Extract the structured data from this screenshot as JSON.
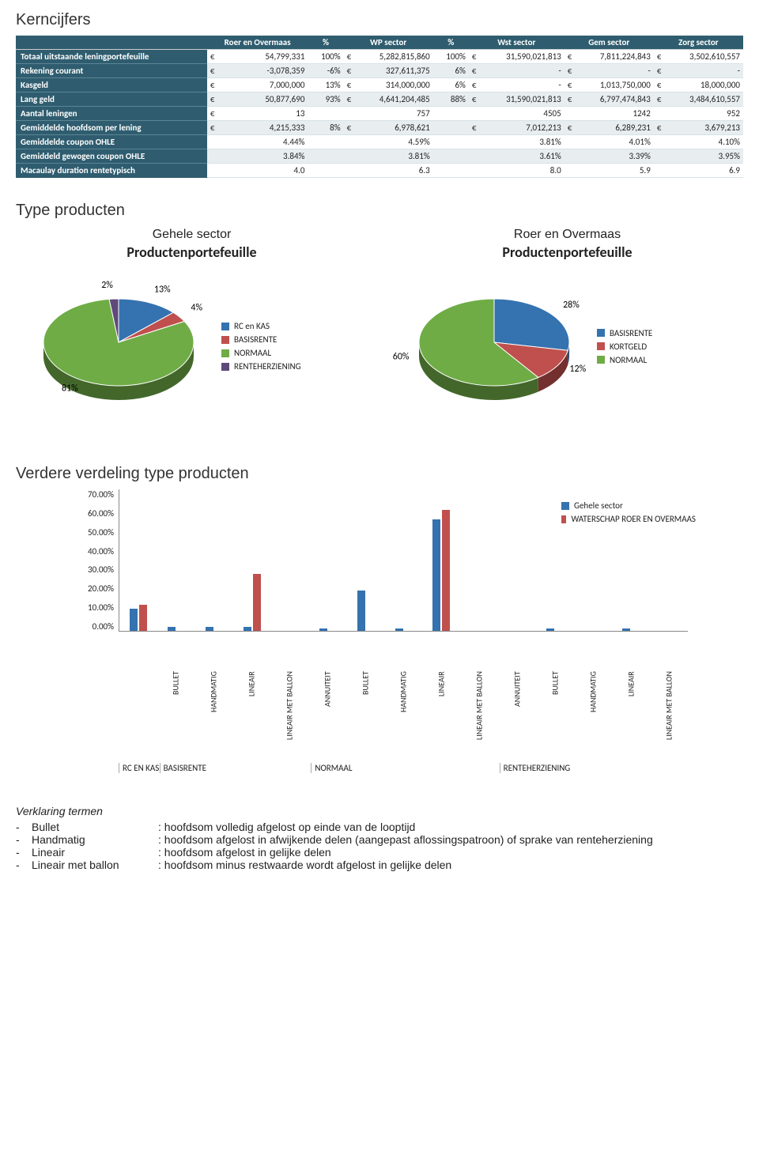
{
  "colors": {
    "header_bg": "#2f5d6f",
    "header_fg": "#ffffff",
    "row_alt_bg": "#e8edf0",
    "grid": "#d7e2e7",
    "series_blue": "#3572b0",
    "series_red": "#c0504d",
    "series_green": "#6fac46",
    "series_purple": "#5f497a"
  },
  "kern": {
    "title": "Kerncijfers",
    "columns": [
      "Roer en Overmaas",
      "%",
      "WP sector",
      "%",
      "Wst sector",
      "Gem sector",
      "Zorg sector"
    ],
    "column_is_cur": [
      true,
      false,
      true,
      false,
      true,
      true,
      true
    ],
    "rows": [
      {
        "label": "Totaal uitstaande leningportefeuille",
        "cells": [
          "54,799,331",
          "100%",
          "5,282,815,860",
          "100%",
          "31,590,021,813",
          "7,811,224,843",
          "3,502,610,557"
        ]
      },
      {
        "label": "Rekening courant",
        "cells": [
          "-3,078,359",
          "-6%",
          "327,611,375",
          "6%",
          "-",
          "-",
          "-"
        ]
      },
      {
        "label": "Kasgeld",
        "cells": [
          "7,000,000",
          "13%",
          "314,000,000",
          "6%",
          "-",
          "1,013,750,000",
          "18,000,000"
        ]
      },
      {
        "label": "Lang geld",
        "cells": [
          "50,877,690",
          "93%",
          "4,641,204,485",
          "88%",
          "31,590,021,813",
          "6,797,474,843",
          "3,484,610,557"
        ]
      },
      {
        "label": "Aantal leningen",
        "cells": [
          "13",
          "",
          "757",
          "",
          "4505",
          "1242",
          "952"
        ],
        "cur_override": [
          true,
          false,
          false,
          false,
          false,
          false,
          false
        ]
      },
      {
        "label": "Gemiddelde hoofdsom per lening",
        "cells": [
          "4,215,333",
          "8%",
          "6,978,621",
          "",
          "7,012,213",
          "6,289,231",
          "3,679,213"
        ]
      },
      {
        "label": "Gemiddelde coupon OHLE",
        "cells": [
          "4.44%",
          "",
          "4.59%",
          "",
          "3.81%",
          "4.01%",
          "4.10%"
        ],
        "cur_override": [
          false,
          false,
          false,
          false,
          false,
          false,
          false
        ]
      },
      {
        "label": "Gemiddeld gewogen coupon OHLE",
        "cells": [
          "3.84%",
          "",
          "3.81%",
          "",
          "3.61%",
          "3.39%",
          "3.95%"
        ],
        "cur_override": [
          false,
          false,
          false,
          false,
          false,
          false,
          false
        ]
      },
      {
        "label": "Macaulay duration rentetypisch",
        "cells": [
          "4.0",
          "",
          "6.3",
          "",
          "8.0",
          "5.9",
          "6.9"
        ],
        "cur_override": [
          false,
          false,
          false,
          false,
          false,
          false,
          false
        ]
      }
    ]
  },
  "type_producten": {
    "title": "Type producten",
    "left": {
      "subtitle": "Gehele sector",
      "title": "Productenportefeuille",
      "slices": [
        {
          "label": "RC en KAS",
          "value": 13,
          "color": "#3572b0"
        },
        {
          "label": "BASISRENTE",
          "value": 4,
          "color": "#c0504d"
        },
        {
          "label": "NORMAAL",
          "value": 81,
          "color": "#6fac46"
        },
        {
          "label": "RENTEHERZIENING",
          "value": 2,
          "color": "#5f497a"
        }
      ],
      "callouts": [
        "2%",
        "13%",
        "4%",
        "81%"
      ]
    },
    "right": {
      "subtitle": "Roer en Overmaas",
      "title": "Productenportefeuille",
      "slices": [
        {
          "label": "BASISRENTE",
          "value": 28,
          "color": "#3572b0"
        },
        {
          "label": "KORTGELD",
          "value": 12,
          "color": "#c0504d"
        },
        {
          "label": "NORMAAL",
          "value": 60,
          "color": "#6fac46"
        }
      ],
      "callouts": [
        "28%",
        "12%",
        "60%"
      ]
    }
  },
  "verdeling": {
    "title": "Verdere verdeling type producten",
    "y_ticks": [
      "70.00%",
      "60.00%",
      "50.00%",
      "40.00%",
      "30.00%",
      "20.00%",
      "10.00%",
      "0.00%"
    ],
    "y_max": 70,
    "series": [
      {
        "name": "Gehele sector",
        "color": "#3572b0"
      },
      {
        "name": "WATERSCHAP ROER EN OVERMAAS",
        "color": "#c0504d"
      }
    ],
    "groups": [
      {
        "name": "RC EN KAS",
        "span": 1,
        "bars": [
          {
            "label": "",
            "a": 11,
            "b": 13
          }
        ]
      },
      {
        "name": "BASISRENTE",
        "span": 4,
        "bars": [
          {
            "label": "BULLET",
            "a": 2,
            "b": 0
          },
          {
            "label": "HANDMATIG",
            "a": 2,
            "b": 0
          },
          {
            "label": "LINEAIR",
            "a": 2,
            "b": 28
          },
          {
            "label": "LINEAIR MET BALLON",
            "a": 0,
            "b": 0
          }
        ]
      },
      {
        "name": "NORMAAL",
        "span": 5,
        "bars": [
          {
            "label": "ANNUITEIT",
            "a": 1,
            "b": 0
          },
          {
            "label": "BULLET",
            "a": 20,
            "b": 0
          },
          {
            "label": "HANDMATIG",
            "a": 1,
            "b": 0
          },
          {
            "label": "LINEAIR",
            "a": 55,
            "b": 60
          },
          {
            "label": "LINEAIR MET BALLON",
            "a": 0,
            "b": 0
          }
        ]
      },
      {
        "name": "RENTEHERZIENING",
        "span": 5,
        "bars": [
          {
            "label": "ANNUITEIT",
            "a": 0,
            "b": 0
          },
          {
            "label": "BULLET",
            "a": 1,
            "b": 0
          },
          {
            "label": "HANDMATIG",
            "a": 0,
            "b": 0
          },
          {
            "label": "LINEAIR",
            "a": 1,
            "b": 0
          },
          {
            "label": "LINEAIR MET BALLON",
            "a": 0,
            "b": 0
          }
        ]
      }
    ]
  },
  "termen": {
    "title": "Verklaring termen",
    "items": [
      {
        "term": "Bullet",
        "def": "hoofdsom volledig afgelost op einde van de looptijd"
      },
      {
        "term": "Handmatig",
        "def": "hoofdsom afgelost in afwijkende delen (aangepast aflossingspatroon) of sprake van renteherziening"
      },
      {
        "term": "Lineair",
        "def": "hoofdsom afgelost in gelijke delen"
      },
      {
        "term": "Lineair met ballon",
        "def": "hoofdsom minus restwaarde wordt afgelost in gelijke delen"
      }
    ]
  }
}
